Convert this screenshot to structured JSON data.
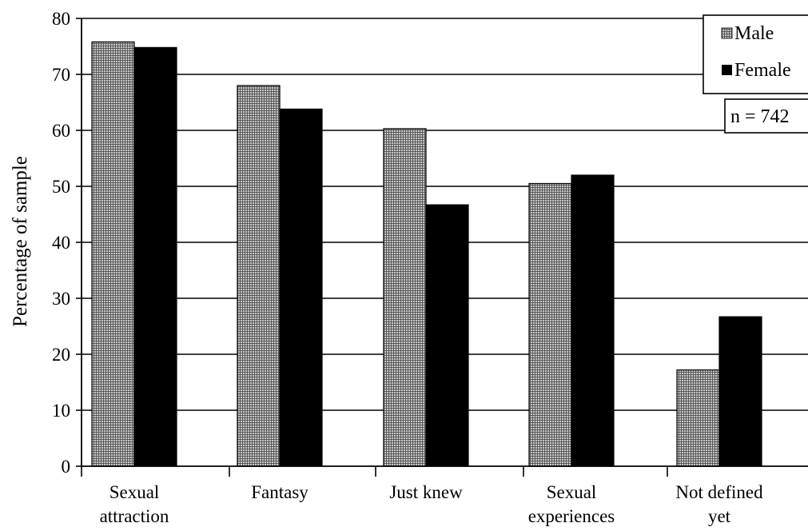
{
  "chart_data": {
    "type": "bar",
    "categories": [
      [
        "Sexual",
        "attraction"
      ],
      [
        "Fantasy"
      ],
      [
        "Just knew"
      ],
      [
        "Sexual",
        "experiences"
      ],
      [
        "Not defined",
        "yet"
      ]
    ],
    "series": [
      {
        "name": "Male",
        "values": [
          75.8,
          68.0,
          60.3,
          50.5,
          17.2
        ],
        "color": "#8c8c8c",
        "pattern": "dotted-grey"
      },
      {
        "name": "Female",
        "values": [
          74.8,
          63.8,
          46.7,
          52.0,
          26.7
        ],
        "color": "#000000",
        "pattern": "solid"
      }
    ],
    "ylabel": "Percentage of sample",
    "xlabel": "",
    "ylim": [
      0,
      80
    ],
    "yticks": [
      "0",
      "10",
      "20",
      "30",
      "40",
      "50",
      "60",
      "70",
      "80"
    ],
    "grid": true,
    "legend": {
      "position": "top-right",
      "entries": [
        "Male",
        "Female"
      ]
    },
    "annotation": "n = 742"
  }
}
